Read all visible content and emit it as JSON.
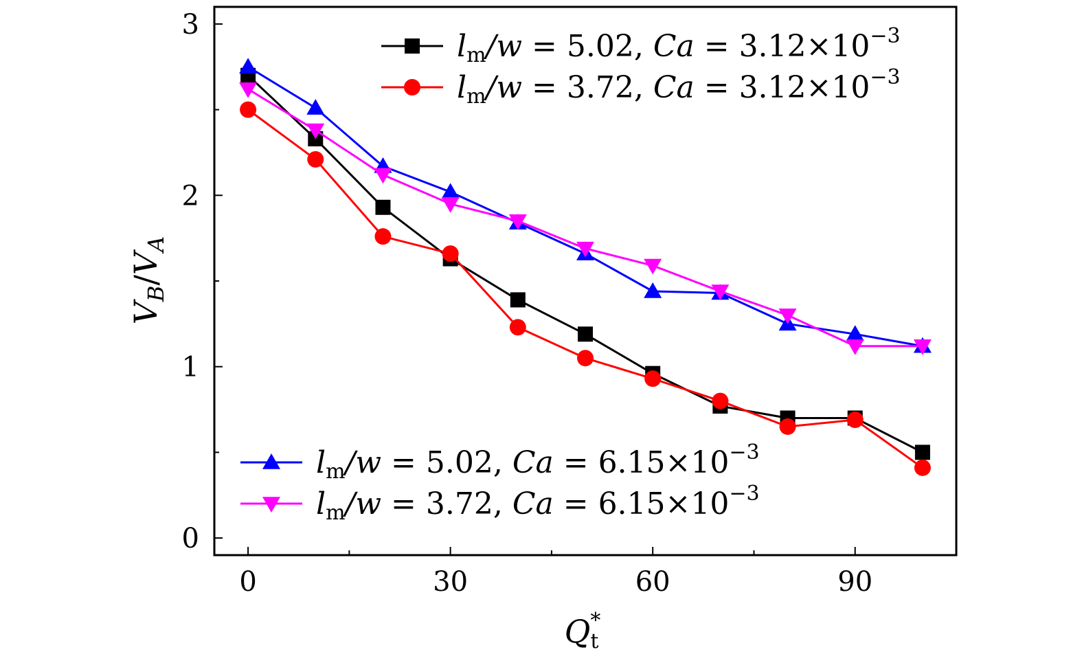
{
  "chart_data": {
    "type": "line",
    "title": "",
    "xlabel": "Q",
    "xlabel_sub": "t",
    "xlabel_sup": "*",
    "ylabel": "V_B/V_A",
    "xlim": [
      -5,
      105
    ],
    "ylim": [
      -0.1,
      3.1
    ],
    "xticks": [
      0,
      30,
      60,
      90
    ],
    "xticks_labels": [
      "0",
      "30",
      "60",
      "90"
    ],
    "xminor": [
      15,
      45,
      75
    ],
    "yticks": [
      0,
      1,
      2,
      3
    ],
    "yticks_labels": [
      "0",
      "1",
      "2",
      "3"
    ],
    "yminor": [
      0.5,
      1.5,
      2.5
    ],
    "grid": false,
    "x": [
      0,
      10,
      20,
      30,
      40,
      50,
      60,
      70,
      80,
      90,
      100
    ],
    "series": [
      {
        "name": "l_m/w = 5.02, Ca = 3.12×10^-3",
        "color": "#000000",
        "marker": "square",
        "values": [
          2.7,
          2.33,
          1.93,
          1.63,
          1.39,
          1.19,
          0.96,
          0.77,
          0.7,
          0.7,
          0.5
        ]
      },
      {
        "name": "l_m/w = 3.72, Ca = 3.12×10^-3",
        "color": "#ff0000",
        "marker": "circle",
        "values": [
          2.5,
          2.21,
          1.76,
          1.66,
          1.23,
          1.05,
          0.93,
          0.8,
          0.65,
          0.69,
          0.41
        ]
      },
      {
        "name": "l_m/w = 5.02, Ca = 6.15×10^-3",
        "color": "#0000ff",
        "marker": "triangle-up",
        "values": [
          2.75,
          2.51,
          2.17,
          2.02,
          1.84,
          1.66,
          1.44,
          1.43,
          1.25,
          1.19,
          1.12
        ]
      },
      {
        "name": "l_m/w = 3.72, Ca = 6.15×10^-3",
        "color": "#ff00ff",
        "marker": "triangle-down",
        "values": [
          2.62,
          2.38,
          2.12,
          1.95,
          1.85,
          1.69,
          1.59,
          1.44,
          1.3,
          1.12,
          1.12
        ]
      }
    ],
    "legend": [
      {
        "series": 0,
        "position": "top-right",
        "lm_w": "5.02",
        "ca": "3.12",
        "exp": "−3"
      },
      {
        "series": 1,
        "position": "top-right",
        "lm_w": "3.72",
        "ca": "3.12",
        "exp": "−3"
      },
      {
        "series": 2,
        "position": "bottom-left",
        "lm_w": "5.02",
        "ca": "6.15",
        "exp": "−3"
      },
      {
        "series": 3,
        "position": "bottom-left",
        "lm_w": "3.72",
        "ca": "6.15",
        "exp": "−3"
      }
    ]
  }
}
